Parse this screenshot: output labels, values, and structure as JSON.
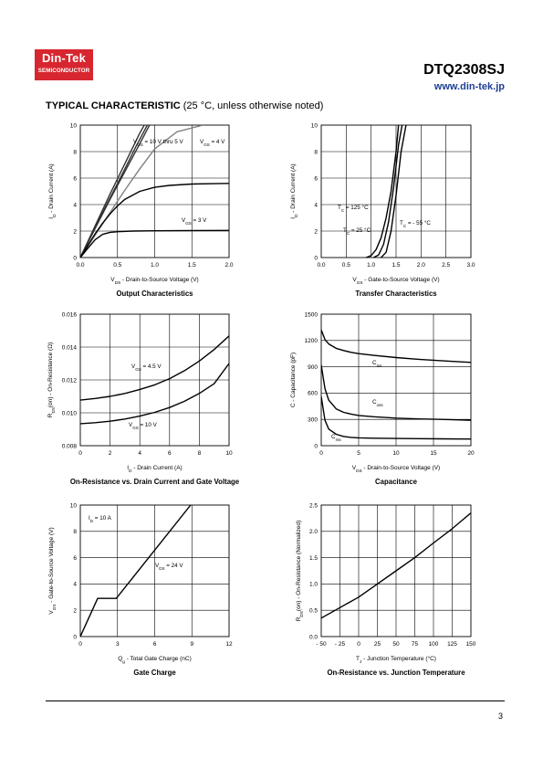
{
  "header": {
    "logo_line1": "Din-Tek",
    "logo_line2": "SEMICONDUCTOR",
    "part_number": "DTQ2308SJ",
    "website": "www.din-tek.jp"
  },
  "section": {
    "title": "TYPICAL CHARACTERISTIC",
    "subtitle": "(25 °C, unless otherwise noted)"
  },
  "footer": {
    "page": "3"
  },
  "chart_data": [
    {
      "type": "line",
      "title": "Output Characteristics",
      "xlabel": "VDS - Drain-to-Source Voltage (V)",
      "ylabel": "ID - Drain Current (A)",
      "xlim": [
        0,
        2.0
      ],
      "ylim": [
        0,
        10
      ],
      "xticks": [
        "0.0",
        "0.5",
        "1.0",
        "1.5",
        "2.0"
      ],
      "yticks": [
        "0",
        "2",
        "4",
        "6",
        "8",
        "10"
      ],
      "grid": true,
      "annotations": [
        "VGS = 10 V thru 5 V",
        "VGS = 4 V",
        "VGS = 3 V"
      ],
      "series": [
        {
          "x": [
            0,
            0.2,
            0.4,
            0.6,
            0.8,
            0.93
          ],
          "y": [
            0,
            2.2,
            4.4,
            6.5,
            8.6,
            10
          ],
          "color": "#333333"
        },
        {
          "x": [
            0,
            0.2,
            0.4,
            0.6,
            0.75,
            0.9
          ],
          "y": [
            0,
            2.3,
            4.5,
            6.7,
            8.4,
            10
          ],
          "color": "#333333"
        },
        {
          "x": [
            0,
            0.2,
            0.4,
            0.6,
            0.8,
            0.86
          ],
          "y": [
            0,
            2.4,
            4.8,
            7.1,
            9.4,
            10
          ],
          "color": "#333333"
        },
        {
          "x": [
            0,
            0.2,
            0.4,
            0.6,
            0.8,
            1.0,
            1.3,
            1.65
          ],
          "y": [
            0,
            1.7,
            3.4,
            5.1,
            6.7,
            8.2,
            9.5,
            10
          ],
          "color": "#808080"
        },
        {
          "x": [
            0,
            0.1,
            0.2,
            0.3,
            0.4,
            0.5,
            0.6,
            0.8,
            1.0,
            1.2,
            1.5,
            1.8,
            2.0
          ],
          "y": [
            0,
            0.9,
            1.8,
            2.6,
            3.3,
            3.9,
            4.4,
            5.0,
            5.3,
            5.45,
            5.55,
            5.58,
            5.6
          ],
          "color": "#000000"
        },
        {
          "x": [
            0,
            0.1,
            0.2,
            0.3,
            0.4,
            0.5,
            0.7,
            1.0,
            1.5,
            2.0
          ],
          "y": [
            0,
            0.7,
            1.35,
            1.75,
            1.9,
            1.95,
            2.0,
            2.02,
            2.04,
            2.05
          ],
          "color": "#000000"
        }
      ]
    },
    {
      "type": "line",
      "title": "Transfer Characteristics",
      "xlabel": "VGS - Gate-to-Source Voltage (V)",
      "ylabel": "ID - Drain Current (A)",
      "xlim": [
        0,
        3.0
      ],
      "ylim": [
        0,
        10
      ],
      "xticks": [
        "0.0",
        "0.5",
        "1.0",
        "1.5",
        "2.0",
        "2.5",
        "3.0"
      ],
      "yticks": [
        "0",
        "2",
        "4",
        "6",
        "8",
        "10"
      ],
      "grid": true,
      "annotations": [
        "TC = 125 °C",
        "TC = 25 °C",
        "TC = - 55 °C"
      ],
      "series": [
        {
          "name": "TC = 125 °C",
          "x": [
            0.9,
            1.0,
            1.1,
            1.2,
            1.3,
            1.4,
            1.5,
            1.55
          ],
          "y": [
            0,
            0.15,
            0.6,
            1.5,
            3.0,
            5.0,
            8.0,
            10
          ],
          "color": "#000000"
        },
        {
          "name": "TC = 25 °C",
          "x": [
            1.05,
            1.15,
            1.25,
            1.35,
            1.45,
            1.55,
            1.62
          ],
          "y": [
            0,
            0.2,
            1.0,
            2.7,
            5.3,
            8.5,
            10
          ],
          "color": "#000000"
        },
        {
          "name": "TC = - 55 °C",
          "x": [
            1.2,
            1.3,
            1.4,
            1.5,
            1.6,
            1.7
          ],
          "y": [
            0,
            0.4,
            2.0,
            4.7,
            8.0,
            10
          ],
          "color": "#000000"
        }
      ]
    },
    {
      "type": "line",
      "title": "On-Resistance vs. Drain Current and Gate Voltage",
      "xlabel": "ID - Drain Current (A)",
      "ylabel": "RDS(on) - On-Resistance (Ω)",
      "xlim": [
        0,
        10
      ],
      "ylim": [
        0.008,
        0.016
      ],
      "xticks": [
        "0",
        "2",
        "4",
        "6",
        "8",
        "10"
      ],
      "yticks": [
        "0.008",
        "0.010",
        "0.012",
        "0.014",
        "0.016"
      ],
      "grid": true,
      "annotations": [
        "VGS = 4.5 V",
        "VGS = 10 V"
      ],
      "series": [
        {
          "name": "VGS = 4.5 V",
          "x": [
            0,
            1,
            2,
            3,
            4,
            5,
            6,
            7,
            8,
            9,
            10
          ],
          "y": [
            0.01077,
            0.01087,
            0.011,
            0.01118,
            0.01142,
            0.0117,
            0.01208,
            0.01256,
            0.01315,
            0.01385,
            0.01468
          ],
          "color": "#000000"
        },
        {
          "name": "VGS = 10 V",
          "x": [
            0,
            1,
            2,
            3,
            4,
            5,
            6,
            7,
            8,
            9,
            10
          ],
          "y": [
            0.00934,
            0.0094,
            0.00949,
            0.00962,
            0.0098,
            0.01003,
            0.01032,
            0.0107,
            0.01118,
            0.01177,
            0.013
          ],
          "color": "#000000"
        }
      ]
    },
    {
      "type": "line",
      "title": "Capacitance",
      "xlabel": "VDS - Drain-to-Source Voltage (V)",
      "ylabel": "C - Capacitance (pF)",
      "xlim": [
        0,
        20
      ],
      "ylim": [
        0,
        1500
      ],
      "xticks": [
        "0",
        "5",
        "10",
        "15",
        "20"
      ],
      "yticks": [
        "0",
        "300",
        "600",
        "900",
        "1200",
        "1500"
      ],
      "grid": true,
      "annotations": [
        "Ciss",
        "Coss",
        "Crss"
      ],
      "series": [
        {
          "name": "Ciss",
          "x": [
            0,
            0.5,
            1,
            2,
            3,
            4,
            5,
            7,
            10,
            13,
            16,
            20
          ],
          "y": [
            1320,
            1210,
            1160,
            1110,
            1085,
            1065,
            1050,
            1030,
            1005,
            985,
            970,
            950
          ],
          "color": "#000000"
        },
        {
          "name": "Coss",
          "x": [
            0,
            0.5,
            1,
            2,
            3,
            4,
            5,
            7,
            10,
            13,
            16,
            20
          ],
          "y": [
            920,
            650,
            520,
            420,
            380,
            360,
            345,
            330,
            315,
            305,
            300,
            290
          ],
          "color": "#000000"
        },
        {
          "name": "Crss",
          "x": [
            0,
            0.5,
            1,
            2,
            3,
            4,
            5,
            7,
            10,
            13,
            16,
            20
          ],
          "y": [
            560,
            290,
            190,
            130,
            105,
            95,
            90,
            85,
            82,
            80,
            78,
            76
          ],
          "color": "#000000"
        }
      ]
    },
    {
      "type": "line",
      "title": "Gate Charge",
      "xlabel": "Qg - Total Gate Charge (nC)",
      "ylabel": "VGS - Gate-to-Source Voltage (V)",
      "xlim": [
        0,
        12
      ],
      "ylim": [
        0,
        10
      ],
      "xticks": [
        "0",
        "3",
        "6",
        "9",
        "12"
      ],
      "yticks": [
        "0",
        "2",
        "4",
        "6",
        "8",
        "10"
      ],
      "grid": true,
      "annotations": [
        "ID = 10 A",
        "VDS = 24 V"
      ],
      "series": [
        {
          "name": "VDS = 24 V",
          "x": [
            0,
            1.4,
            2.9,
            8.9
          ],
          "y": [
            0,
            2.9,
            2.9,
            10
          ],
          "color": "#000000"
        }
      ]
    },
    {
      "type": "line",
      "title": "On-Resistance vs. Junction Temperature",
      "xlabel": "TJ - Junction Temperature (°C)",
      "ylabel": "RDS(on) - On-Resistance (Normalized)",
      "xlim": [
        -50,
        150
      ],
      "ylim": [
        0,
        2.5
      ],
      "xticks": [
        "- 50",
        "- 25",
        "0",
        "25",
        "50",
        "75",
        "100",
        "125",
        "150"
      ],
      "yticks": [
        "0.0",
        "0.5",
        "1.0",
        "1.5",
        "2.0",
        "2.5"
      ],
      "grid": true,
      "series": [
        {
          "x": [
            -50,
            -25,
            0,
            25,
            50,
            75,
            100,
            125,
            150
          ],
          "y": [
            0.35,
            0.55,
            0.75,
            1.0,
            1.25,
            1.5,
            1.78,
            2.05,
            2.35
          ],
          "color": "#000000"
        }
      ]
    }
  ]
}
